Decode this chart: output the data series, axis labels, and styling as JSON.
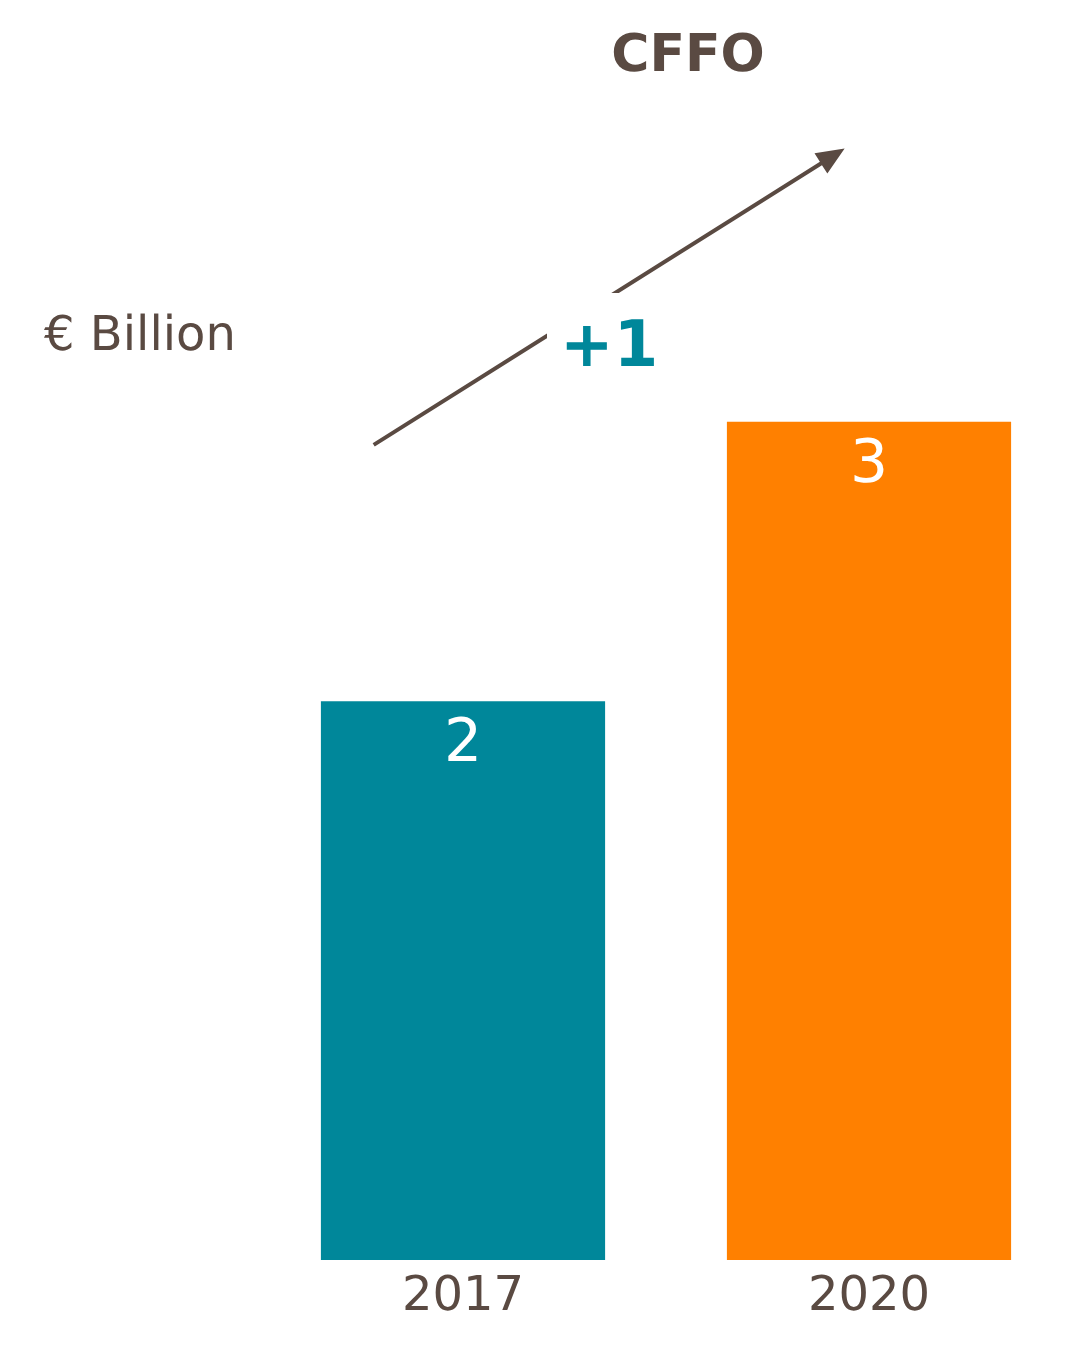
{
  "chart_data": {
    "type": "bar",
    "title": "CFFO",
    "ylabel": "€ Billion",
    "categories": [
      "2017",
      "2020"
    ],
    "values": [
      2,
      3
    ],
    "colors": [
      "#00879a",
      "#ff8000"
    ],
    "data_labels": true,
    "annotations": [
      "+1"
    ],
    "legend": false
  }
}
